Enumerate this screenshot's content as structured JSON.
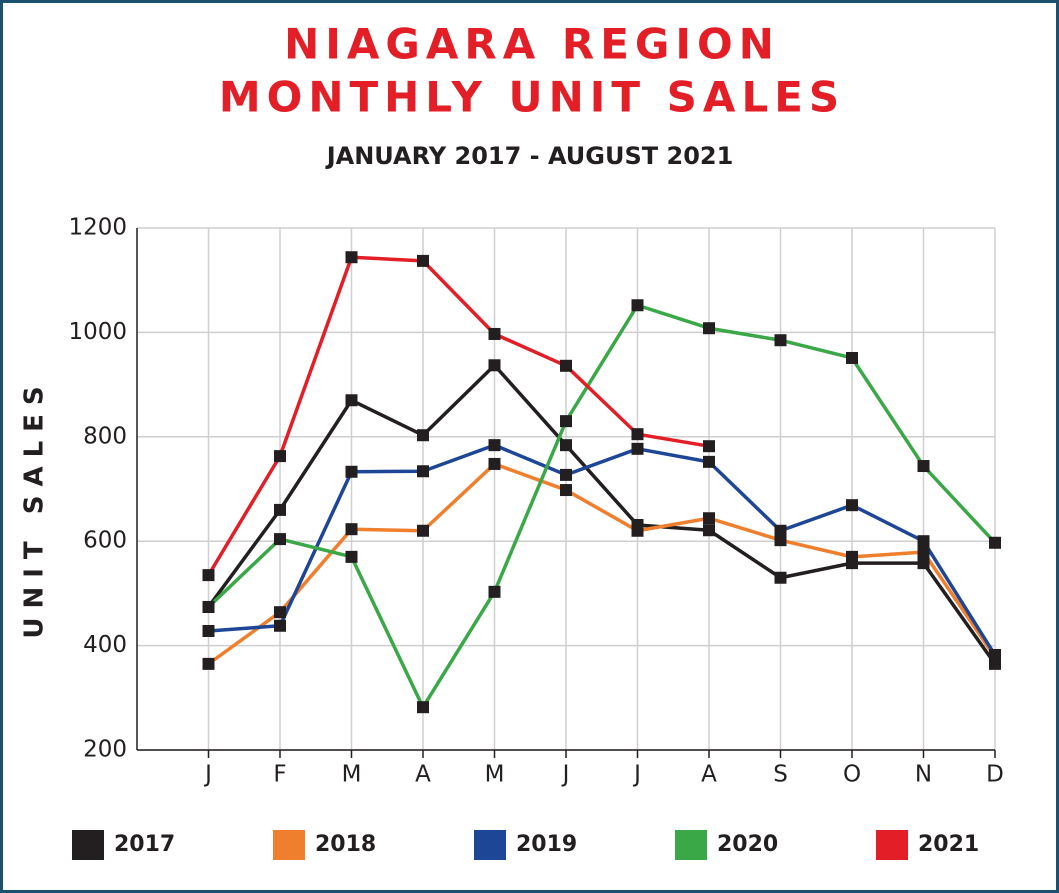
{
  "chart_data": {
    "type": "line",
    "title": [
      "NIAGARA REGION",
      "MONTHLY UNIT SALES"
    ],
    "subtitle": "JANUARY 2017 - AUGUST 2021",
    "y_label": "UNIT SALES",
    "categories": [
      "J",
      "F",
      "M",
      "A",
      "M",
      "J",
      "J",
      "A",
      "S",
      "O",
      "N",
      "D"
    ],
    "ylim": [
      200,
      1200
    ],
    "yticks": [
      200,
      400,
      600,
      800,
      1000,
      1200
    ],
    "grid": true,
    "legend": "bottom",
    "marker_color": "#231f20",
    "series": [
      {
        "name": "2017",
        "color": "#231f20",
        "values": [
          474,
          660,
          870,
          803,
          937,
          784,
          631,
          621,
          530,
          558,
          558,
          365
        ]
      },
      {
        "name": "2018",
        "color": "#f07f2d",
        "values": [
          365,
          464,
          623,
          620,
          748,
          698,
          620,
          644,
          602,
          570,
          579,
          378
        ]
      },
      {
        "name": "2019",
        "color": "#1d4696",
        "values": [
          428,
          438,
          733,
          734,
          784,
          727,
          777,
          752,
          620,
          669,
          600,
          382
        ]
      },
      {
        "name": "2020",
        "color": "#3aa847",
        "values": [
          474,
          604,
          570,
          282,
          503,
          830,
          1052,
          1008,
          985,
          951,
          744,
          597
        ]
      },
      {
        "name": "2021",
        "color": "#e31e26",
        "values": [
          535,
          763,
          1144,
          1137,
          997,
          936,
          805,
          782,
          null,
          null,
          null,
          null
        ]
      }
    ]
  }
}
